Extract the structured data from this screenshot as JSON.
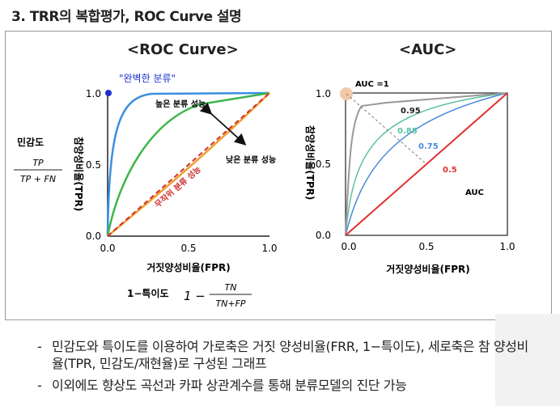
{
  "title": "3. TRR의 복합평가, ROC Curve 설명",
  "roc": {
    "caption": "<ROC Curve>",
    "perfect_label": "\"완벽한 분류\"",
    "good_label": "높은 분류 성능",
    "bad_label": "낮은 분류 성능",
    "random_label": "무작위 분류 성능",
    "y_ticks": [
      "1.0",
      "0.5",
      "0.0"
    ],
    "x_ticks": [
      "0.0",
      "0.5",
      "1.0"
    ],
    "ylabel": "참양성비율(TPR)",
    "xlabel": "거짓양성비율(FPR)",
    "sensitivity_label": "민감도",
    "sensitivity_num": "TP",
    "sensitivity_den": "TP + FN",
    "specificity_label": "1−특이도",
    "specificity_prefix": "1 −",
    "specificity_num": "TN",
    "specificity_den": "TN+FP"
  },
  "auc": {
    "caption": "<AUC>",
    "auc1_label": "AUC =1",
    "v095": "0.95",
    "v085": "0.85",
    "v075": "0.75",
    "v05": "0.5",
    "auc_word": "AUC",
    "y_ticks": [
      "1.0",
      "0.5",
      "0.0"
    ],
    "x_ticks": [
      "0.0",
      "0.5",
      "1.0"
    ],
    "ylabel": "참양성비율(TPR)",
    "xlabel": "거짓양성비율(FPR)"
  },
  "colors": {
    "perfect": "#3a8fe0",
    "good": "#3db54a",
    "medium": "#f0a030",
    "random": "#d03030",
    "perfect_dot": "#1a2fd0",
    "auc095": "#999999",
    "auc085": "#5cc0a0",
    "auc075": "#4a8ad8",
    "auc05": "#e03030"
  },
  "bullets": [
    "민감도와 특이도를 이용하여 가로축은 거짓 양성비율(FRR, 1−특이도), 세로축은 참 양성비율(TPR, 민감도/재현율)로 구성된 그래프",
    "이외에도 향상도 곡선과 카파 상관계수를 통해 분류모델의 진단 가능"
  ]
}
